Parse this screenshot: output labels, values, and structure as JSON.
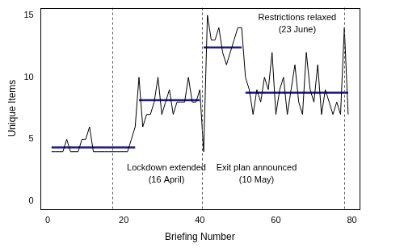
{
  "chart_data": {
    "type": "line",
    "x_label": "Briefing Number",
    "y_label": "Unique Items",
    "x": [
      1,
      2,
      3,
      4,
      5,
      6,
      7,
      8,
      9,
      10,
      11,
      12,
      13,
      14,
      15,
      16,
      17,
      18,
      19,
      20,
      21,
      22,
      23,
      24,
      25,
      26,
      27,
      28,
      29,
      30,
      31,
      32,
      33,
      34,
      35,
      36,
      37,
      38,
      39,
      40,
      41,
      42,
      43,
      44,
      45,
      46,
      47,
      48,
      49,
      50,
      51,
      52,
      53,
      54,
      55,
      56,
      57,
      58,
      59,
      60,
      61,
      62,
      63,
      64,
      65,
      66,
      67,
      68,
      69,
      70,
      71,
      72,
      73,
      74,
      75,
      76,
      77,
      78,
      79
    ],
    "values": [
      4,
      4,
      4,
      4,
      5,
      4,
      4,
      4,
      5,
      5,
      6,
      4,
      4,
      4,
      4,
      4,
      4,
      4,
      4,
      4,
      4,
      5,
      6,
      10,
      6,
      7,
      7,
      8,
      10,
      7,
      8,
      9,
      7,
      8,
      8,
      8,
      10,
      8,
      8,
      9,
      4,
      15,
      13,
      13,
      14,
      12,
      11,
      12,
      13,
      14,
      14,
      10,
      9,
      7,
      9,
      8,
      10,
      9,
      12,
      7,
      9,
      10,
      7,
      9,
      11,
      8,
      7,
      12,
      9,
      8,
      11,
      7,
      9,
      8,
      7,
      8,
      7,
      14,
      7
    ],
    "color": "#000000",
    "segments": {
      "color": "#1c1c8c",
      "items": [
        {
          "x": [
            1,
            23
          ],
          "y": 4.35
        },
        {
          "x": [
            24,
            40
          ],
          "y": 8.15
        },
        {
          "x": [
            41,
            51
          ],
          "y": 12.4
        },
        {
          "x": [
            52,
            79
          ],
          "y": 8.75
        }
      ]
    },
    "annotations": [
      {
        "x": 17,
        "label": [
          "Lockdown extended",
          "(16 April)"
        ]
      },
      {
        "x": 40.5,
        "label": [
          "Exit plan announced",
          "(10 May)"
        ]
      },
      {
        "x": 78,
        "label": [
          "Restrictions relaxed",
          "(23 June)"
        ]
      }
    ],
    "annotation_line_style": "dashed",
    "xlim": [
      -2,
      82
    ],
    "xticks": [
      0,
      20,
      40,
      60,
      80
    ],
    "ylim": [
      -0.6,
      15.6
    ],
    "yticks": [
      0,
      5,
      10,
      15
    ],
    "grid": false
  }
}
